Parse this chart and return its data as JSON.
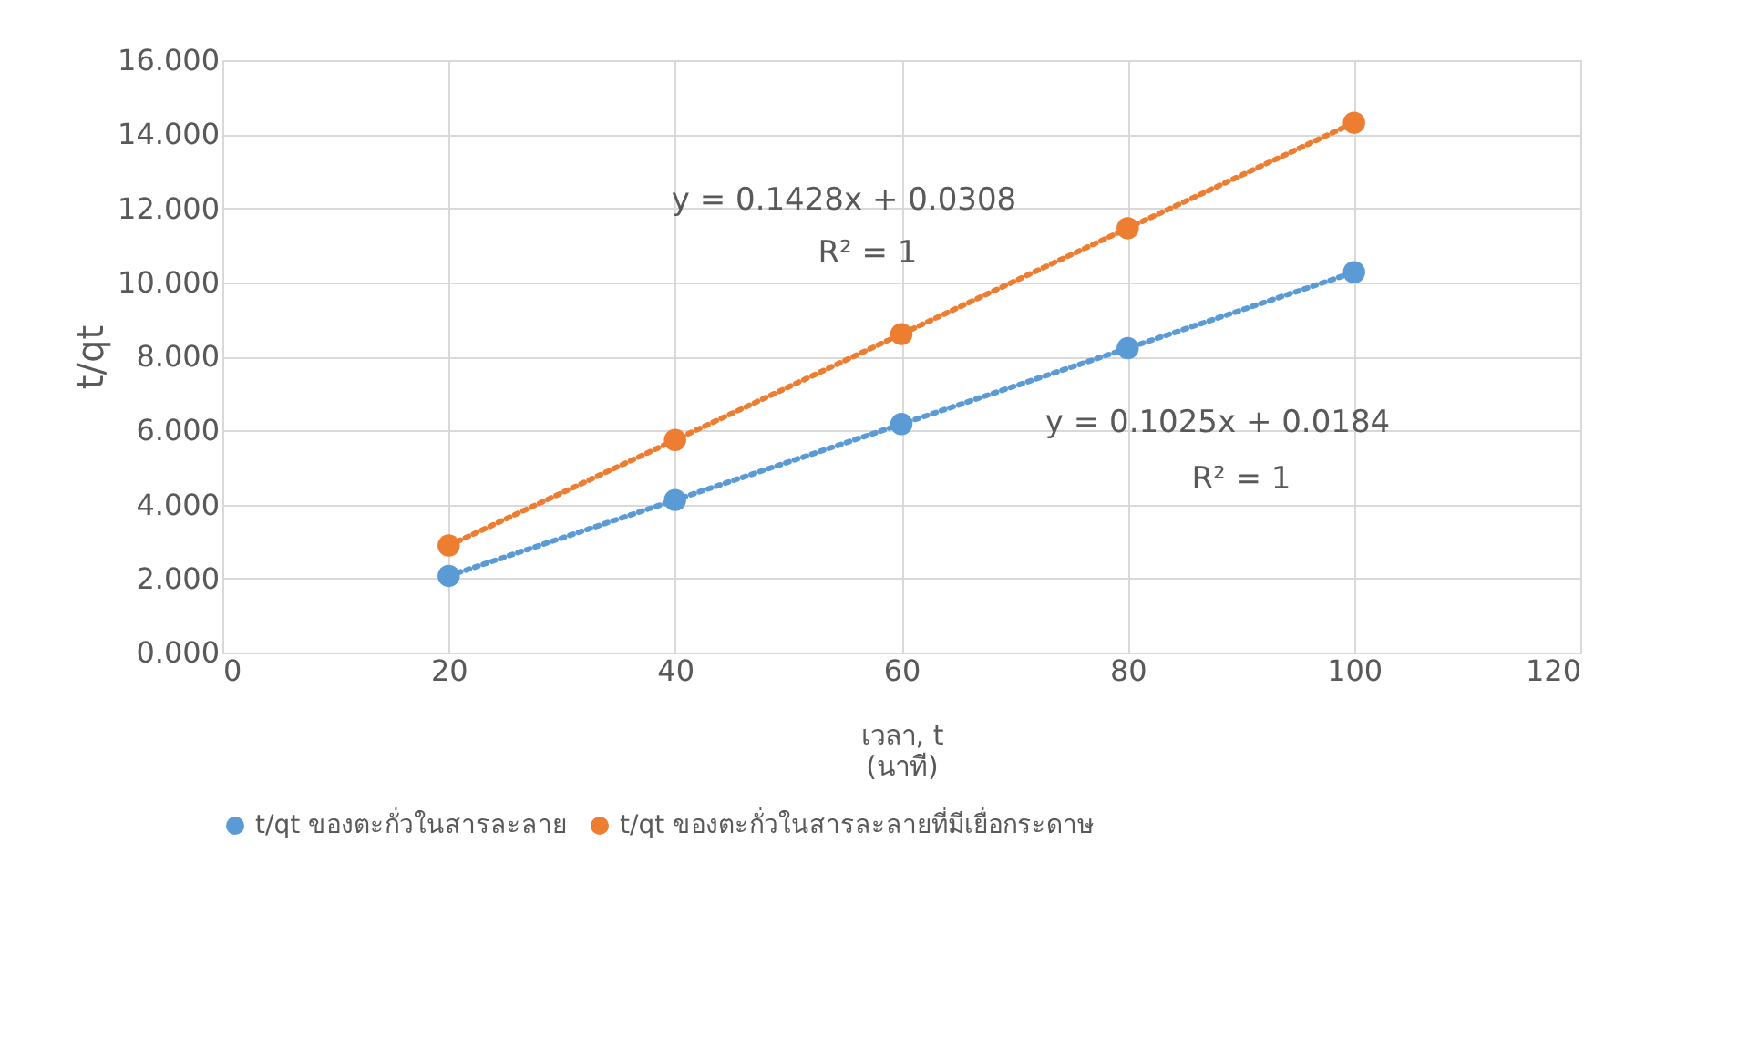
{
  "chart_data": {
    "type": "scatter",
    "xlabel": "เวลา, t\n(นาที)",
    "ylabel": "t/qt",
    "x": [
      20,
      40,
      60,
      80,
      100
    ],
    "series": [
      {
        "name": "t/qt ของตะกั่วในสารละลาย",
        "color": "#5b9bd5",
        "values": [
          2.07,
          4.12,
          6.17,
          8.22,
          10.27
        ]
      },
      {
        "name": "t/qt ของตะกั่วในสารละลายที่มีเยื่อกระดาษ",
        "color": "#ed7d31",
        "values": [
          2.89,
          5.74,
          8.6,
          11.46,
          14.31
        ]
      },
      {
        "type": "line",
        "color": "#5b9bd5",
        "line_style": "dotted",
        "marker": "none",
        "values": [
          2.07,
          4.12,
          6.17,
          8.22,
          10.27
        ]
      },
      {
        "type": "line",
        "color": "#ed7d31",
        "line_style": "dotted",
        "marker": "none",
        "values": [
          2.89,
          5.74,
          8.6,
          11.46,
          14.31
        ]
      }
    ],
    "xlim": [
      0,
      120
    ],
    "xticks": [
      0,
      20,
      40,
      60,
      80,
      100,
      120
    ],
    "ylim": [
      0,
      16
    ],
    "yticks": [
      {
        "value": 0,
        "label": "0.000"
      },
      {
        "value": 2,
        "label": "2.000"
      },
      {
        "value": 4,
        "label": "4.000"
      },
      {
        "value": 6,
        "label": "6.000"
      },
      {
        "value": 8,
        "label": "8.000"
      },
      {
        "value": 10,
        "label": "10.000"
      },
      {
        "value": 12,
        "label": "12.000"
      },
      {
        "value": 14,
        "label": "14.000"
      },
      {
        "value": 16,
        "label": "16.000"
      }
    ],
    "annotations": [
      "y = 0.1428x + 0.0308",
      "R² = 1",
      "y = 0.1025x + 0.0184",
      "R² = 1"
    ],
    "grid": true,
    "legend": "bottom",
    "marker": "circle"
  }
}
